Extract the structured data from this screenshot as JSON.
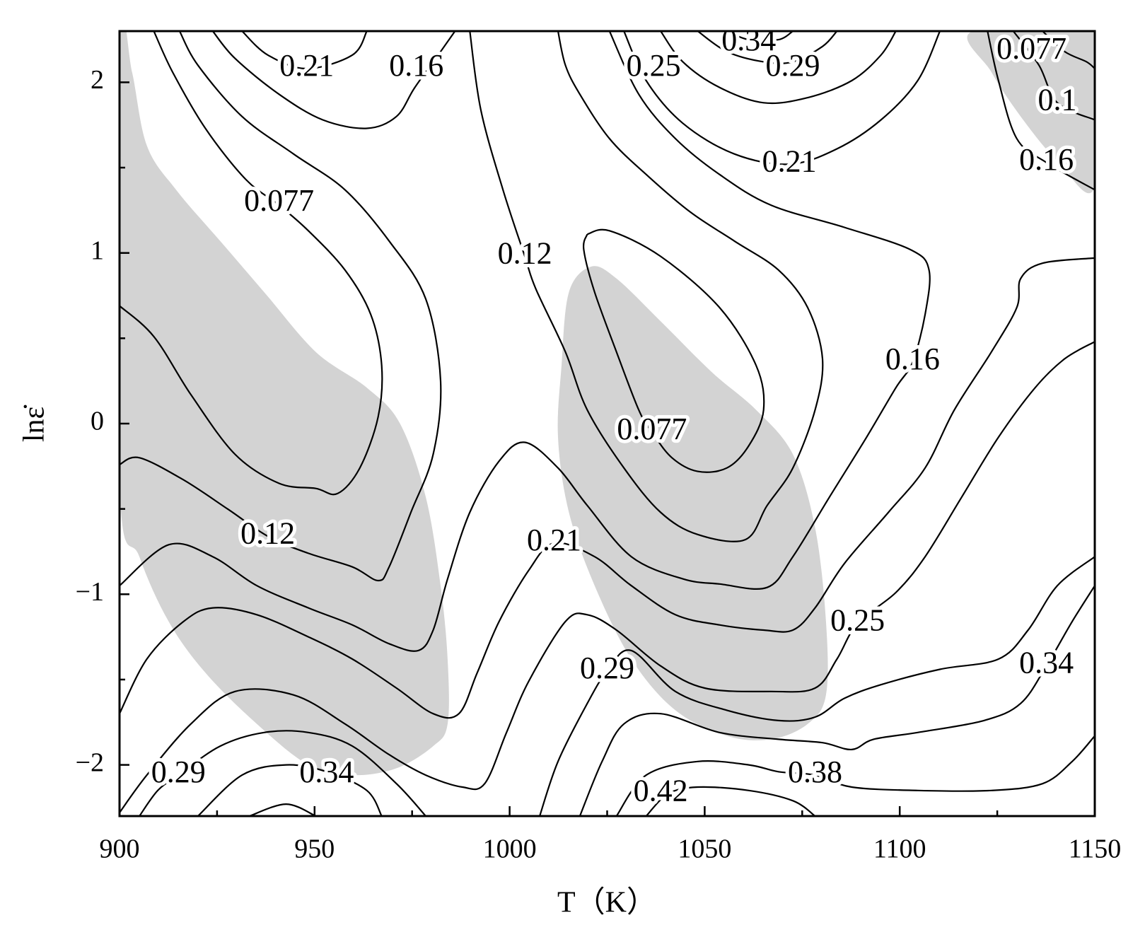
{
  "chart_data": {
    "type": "contour",
    "x_label": "T（K）",
    "y_label": "lnε̇",
    "xlim": [
      900,
      1150
    ],
    "ylim": [
      -2.3,
      2.3
    ],
    "xticks": [
      900,
      950,
      1000,
      1050,
      1100,
      1150
    ],
    "yticks": [
      {
        "value": -2,
        "label": "−2"
      },
      {
        "value": -1,
        "label": "−1"
      },
      0,
      1,
      2
    ],
    "xminor": [
      925,
      975,
      1025,
      1075,
      1125
    ],
    "yminor": [
      -1.5,
      -0.5,
      0.5,
      1.5
    ],
    "line_color": "#000000",
    "region_color": "#d3d3d3",
    "regions": [
      {
        "x": [
          900,
          903.2,
          907.0,
          914.5,
          925.8,
          937.1,
          950.3,
          963.4,
          971.9,
          978.5,
          982.3,
          984.1,
          984.1,
          980.4,
          971.0,
          959.7,
          948.4,
          935.2,
          922.0,
          912.6,
          905.1,
          900
        ],
        "y": [
          2.3,
          2.06,
          1.63,
          1.37,
          1.07,
          0.77,
          0.42,
          0.21,
          0.0,
          -0.43,
          -0.95,
          -1.38,
          -1.76,
          -1.89,
          -2.02,
          -2.06,
          -2.0,
          -1.76,
          -1.46,
          -1.16,
          -0.78,
          -0.35
        ]
      },
      {
        "x": [
          1020.9,
          1027.4,
          1038.7,
          1051.9,
          1063.2,
          1072.6,
          1078.3,
          1081.1,
          1081.1,
          1076.4,
          1067.0,
          1055.7,
          1042.5,
          1031.2,
          1021.8,
          1015.2,
          1012.4,
          1013.3,
          1015.2
        ],
        "y": [
          0.92,
          0.85,
          0.6,
          0.3,
          0.08,
          -0.18,
          -0.61,
          -1.16,
          -1.59,
          -1.76,
          -1.85,
          -1.83,
          -1.68,
          -1.38,
          -0.95,
          -0.52,
          -0.08,
          0.34,
          0.77
        ]
      },
      {
        "x": [
          1118.7,
          1150,
          1150,
          1140.4,
          1131.0,
          1123.5
        ],
        "y": [
          2.3,
          2.3,
          1.39,
          1.54,
          1.8,
          2.06
        ]
      }
    ],
    "contours": [
      {
        "x": [
          908.8,
          913.6,
          922.0,
          932.4,
          940.9,
          948.4,
          957.8,
          964.4,
          967.2,
          966.3,
          961.6,
          955.9,
          950.3,
          940.9,
          929.6,
          918.3,
          908.8,
          900
        ],
        "y": [
          2.3,
          2.06,
          1.73,
          1.43,
          1.28,
          1.13,
          0.9,
          0.64,
          0.34,
          0.04,
          -0.26,
          -0.41,
          -0.38,
          -0.35,
          -0.18,
          0.17,
          0.51,
          0.69
        ]
      },
      {
        "x": [
          915.4,
          920.1,
          931.4,
          944.6,
          957.8,
          969.1,
          978.5,
          982.3,
          980.4,
          974.7,
          969.1,
          966.3,
          959.7,
          948.4,
          938.0,
          927.7,
          916.4,
          905.1,
          900
        ],
        "y": [
          2.3,
          2.1,
          1.8,
          1.58,
          1.37,
          1.07,
          0.73,
          0.25,
          -0.18,
          -0.52,
          -0.84,
          -0.92,
          -0.84,
          -0.76,
          -0.66,
          -0.5,
          -0.33,
          -0.2,
          -0.24
        ]
      },
      {
        "x": [
          923.9,
          929.6,
          940.9,
          952.1,
          963.4,
          971.0,
          975.7,
          982.3,
          986.0
        ],
        "y": [
          2.3,
          2.14,
          1.93,
          1.78,
          1.73,
          1.8,
          1.97,
          2.18,
          2.3
        ]
      },
      {
        "x": [
          931.4,
          938.0,
          948.0,
          959.7,
          963.4
        ],
        "y": [
          2.3,
          2.16,
          2.08,
          2.16,
          2.3
        ]
      },
      {
        "x": [
          1019.9,
          1025.6,
          1038.7,
          1053.8,
          1063.2,
          1065.1,
          1061.3,
          1055.7,
          1048.2,
          1041.6,
          1036.5,
          1033.1,
          1027.4,
          1021.8,
          1019.0,
          1019.9
        ],
        "y": [
          1.11,
          1.13,
          0.98,
          0.68,
          0.34,
          0.08,
          -0.13,
          -0.26,
          -0.28,
          -0.2,
          -0.05,
          0.08,
          0.42,
          0.77,
          1.02,
          1.11
        ]
      },
      {
        "x": [
          989.8,
          992.6,
          998.3,
          1003.9,
          1006.7,
          1014.3,
          1019.9,
          1029.3,
          1038.7,
          1048.2,
          1060.4,
          1066.0,
          1072.6,
          1078.3,
          1080.2,
          1076.4,
          1068.9,
          1057.6,
          1046.3,
          1035.0,
          1025.6,
          1018.0,
          1014.3,
          1012.4
        ],
        "y": [
          2.3,
          1.84,
          1.37,
          0.98,
          0.79,
          0.42,
          0.08,
          -0.26,
          -0.52,
          -0.65,
          -0.68,
          -0.48,
          -0.26,
          0.08,
          0.38,
          0.68,
          0.9,
          1.07,
          1.24,
          1.46,
          1.67,
          1.93,
          2.1,
          2.3
        ]
      },
      {
        "x": [
          1025.6,
          1033.1,
          1042.5,
          1053.8,
          1067.0,
          1085.8,
          1102.7,
          1107.5,
          1106.5,
          1103.3,
          1099.0,
          1091.5,
          1082.0,
          1072.6,
          1066.0,
          1053.8,
          1044.4,
          1031.2,
          1019.9,
          1012.4,
          1003.9,
          997.3,
          989.8,
          984.1,
          980.4,
          976.6,
          969.1,
          959.7,
          948.4,
          935.2,
          923.9,
          912.6,
          900
        ],
        "y": [
          2.3,
          1.93,
          1.67,
          1.46,
          1.28,
          1.15,
          1.02,
          0.9,
          0.64,
          0.36,
          0.21,
          -0.08,
          -0.43,
          -0.78,
          -0.96,
          -0.94,
          -0.91,
          -0.78,
          -0.48,
          -0.26,
          -0.11,
          -0.22,
          -0.52,
          -0.91,
          -1.21,
          -1.33,
          -1.29,
          -1.18,
          -1.08,
          -0.95,
          -0.78,
          -0.71,
          -0.95
        ]
      },
      {
        "x": [
          900,
          907.0,
          916.4,
          923.9,
          935.2,
          948.4,
          959.7,
          971.0,
          980.4,
          987.0,
          991.7,
          997.3,
          1004.9,
          1011.4,
          1021.8,
          1031.2,
          1042.5,
          1053.8,
          1065.1,
          1072.6,
          1078.3,
          1085.8,
          1097.1,
          1106.5,
          1114.0,
          1123.5,
          1130.0,
          1131.0,
          1136.6,
          1150
        ],
        "y": [
          -1.7,
          -1.38,
          -1.16,
          -1.08,
          -1.12,
          -1.25,
          -1.38,
          -1.55,
          -1.7,
          -1.7,
          -1.46,
          -1.16,
          -0.86,
          -0.7,
          -0.78,
          -0.95,
          -1.12,
          -1.18,
          -1.21,
          -1.21,
          -1.08,
          -0.82,
          -0.52,
          -0.26,
          0.08,
          0.42,
          0.68,
          0.85,
          0.94,
          0.97
        ]
      },
      {
        "x": [
          900,
          907.0,
          918.3,
          929.6,
          944.6,
          957.8,
          969.1,
          978.5,
          987.9,
          993.6,
          999.2,
          1004.9,
          1014.3,
          1019.9,
          1027.4,
          1038.7,
          1050.0,
          1067.0,
          1078.3,
          1083.9,
          1089.2,
          1099.0,
          1106.5,
          1115.9,
          1125.3,
          1134.7,
          1142.3,
          1150
        ],
        "y": [
          -2.28,
          -2.06,
          -1.76,
          -1.57,
          -1.59,
          -1.76,
          -1.94,
          -2.06,
          -2.13,
          -2.11,
          -1.81,
          -1.51,
          -1.16,
          -1.12,
          -1.21,
          -1.42,
          -1.55,
          -1.57,
          -1.55,
          -1.38,
          -1.17,
          -0.99,
          -0.78,
          -0.43,
          -0.08,
          0.21,
          0.38,
          0.48
        ]
      },
      {
        "x": [
          905.1,
          909.8,
          915.1,
          925.8,
          937.1,
          948.4,
          959.7,
          971.0,
          978.5
        ],
        "y": [
          -2.3,
          -2.15,
          -2.06,
          -1.89,
          -1.81,
          -1.81,
          -1.89,
          -2.11,
          -2.3
        ]
      },
      {
        "x": [
          920.1,
          931.4,
          942.7,
          953.1,
          963.4,
          967.2
        ],
        "y": [
          -2.3,
          -2.06,
          -2.0,
          -2.04,
          -2.15,
          -2.3
        ]
      },
      {
        "x": [
          933.3,
          942.7,
          950.3
        ],
        "y": [
          -2.3,
          -2.23,
          -2.3
        ]
      },
      {
        "x": [
          1007.7,
          1012.4,
          1019.9,
          1025.0,
          1031.2,
          1042.5,
          1055.7,
          1068.9,
          1078.3,
          1085.8,
          1095.2,
          1110.3,
          1125.3,
          1132.9,
          1140.4,
          1150
        ],
        "y": [
          -2.3,
          -1.98,
          -1.64,
          -1.45,
          -1.33,
          -1.57,
          -1.68,
          -1.74,
          -1.72,
          -1.61,
          -1.53,
          -1.44,
          -1.38,
          -1.21,
          -0.95,
          -0.78
        ]
      },
      {
        "x": [
          1018.0,
          1023.7,
          1029.3,
          1038.7,
          1053.8,
          1068.9,
          1080.2,
          1087.7,
          1093.3,
          1104.6,
          1121.6,
          1131.0,
          1137.6,
          1144.2,
          1150
        ],
        "y": [
          -2.3,
          -1.98,
          -1.76,
          -1.7,
          -1.81,
          -1.85,
          -1.87,
          -1.91,
          -1.85,
          -1.81,
          -1.74,
          -1.64,
          -1.42,
          -1.16,
          -0.95
        ]
      },
      {
        "x": [
          1027.4,
          1035.0,
          1048.2,
          1061.3,
          1068.9,
          1078.3,
          1087.7,
          1104.6,
          1123.5,
          1136.6,
          1144.2,
          1150
        ],
        "y": [
          -2.3,
          -2.06,
          -1.98,
          -2.0,
          -2.04,
          -2.06,
          -2.13,
          -2.15,
          -2.15,
          -2.11,
          -1.98,
          -1.83
        ]
      },
      {
        "x": [
          1035.0,
          1040.6,
          1048.2,
          1061.3,
          1072.6,
          1078.3
        ],
        "y": [
          -2.3,
          -2.17,
          -2.13,
          -2.15,
          -2.21,
          -2.3
        ]
      },
      {
        "x": [
          1029.3,
          1035.0,
          1044.4,
          1057.6,
          1071.7,
          1083.9,
          1095.2,
          1104.6,
          1110.3
        ],
        "y": [
          2.3,
          2.01,
          1.76,
          1.58,
          1.52,
          1.61,
          1.78,
          2.01,
          2.3
        ]
      },
      {
        "x": [
          1038.7,
          1044.4,
          1053.8,
          1065.1,
          1076.4,
          1087.7,
          1095.2,
          1099.0
        ],
        "y": [
          2.3,
          2.12,
          1.97,
          1.88,
          1.91,
          2.01,
          2.16,
          2.3
        ]
      },
      {
        "x": [
          1048.2,
          1055.7,
          1065.1,
          1072.6,
          1080.2,
          1083.9
        ],
        "y": [
          2.3,
          2.18,
          2.12,
          2.12,
          2.21,
          2.3
        ]
      },
      {
        "x": [
          1055.7,
          1061.3,
          1068.9,
          1072.6
        ],
        "y": [
          2.3,
          2.25,
          2.25,
          2.3
        ]
      },
      {
        "x": [
          1122.5,
          1125.3,
          1130.0,
          1137.6,
          1150
        ],
        "y": [
          2.3,
          2.01,
          1.67,
          1.53,
          1.37
        ]
      },
      {
        "x": [
          1129.1,
          1135.7,
          1140.4,
          1150
        ],
        "y": [
          2.3,
          2.1,
          1.88,
          1.78
        ]
      },
      {
        "x": [
          1136.6,
          1142.3,
          1147.9,
          1150
        ],
        "y": [
          2.3,
          2.18,
          2.12,
          2.08
        ]
      }
    ],
    "contour_labels": [
      {
        "level": 0.21,
        "x": 948.0,
        "y": 2.08
      },
      {
        "level": 0.16,
        "x": 976.1,
        "y": 2.08
      },
      {
        "level": 0.077,
        "x": 940.9,
        "y": 1.29
      },
      {
        "level": 0.12,
        "x": 938.0,
        "y": -0.66
      },
      {
        "level": 0.29,
        "x": 915.1,
        "y": -2.06
      },
      {
        "level": 0.34,
        "x": 953.1,
        "y": -2.06
      },
      {
        "level": 0.12,
        "x": 1003.9,
        "y": 0.98
      },
      {
        "level": 0.077,
        "x": 1036.5,
        "y": -0.05
      },
      {
        "level": 0.21,
        "x": 1011.4,
        "y": -0.7
      },
      {
        "level": 0.29,
        "x": 1025.0,
        "y": -1.45
      },
      {
        "level": 0.42,
        "x": 1038.7,
        "y": -2.17
      },
      {
        "level": 0.38,
        "x": 1078.3,
        "y": -2.06
      },
      {
        "level": 0.25,
        "x": 1089.2,
        "y": -1.17
      },
      {
        "level": 0.16,
        "x": 1103.3,
        "y": 0.36
      },
      {
        "level": 0.34,
        "x": 1137.6,
        "y": -1.42
      },
      {
        "level": 0.25,
        "x": 1036.9,
        "y": 2.08
      },
      {
        "level": 0.34,
        "x": 1061.3,
        "y": 2.23
      },
      {
        "level": 0.29,
        "x": 1072.6,
        "y": 2.08
      },
      {
        "level": 0.21,
        "x": 1071.7,
        "y": 1.52
      },
      {
        "level": 0.077,
        "x": 1133.8,
        "y": 2.18
      },
      {
        "level": 0.1,
        "x": 1140.4,
        "y": 1.88
      },
      {
        "level": 0.16,
        "x": 1137.6,
        "y": 1.53
      }
    ]
  }
}
